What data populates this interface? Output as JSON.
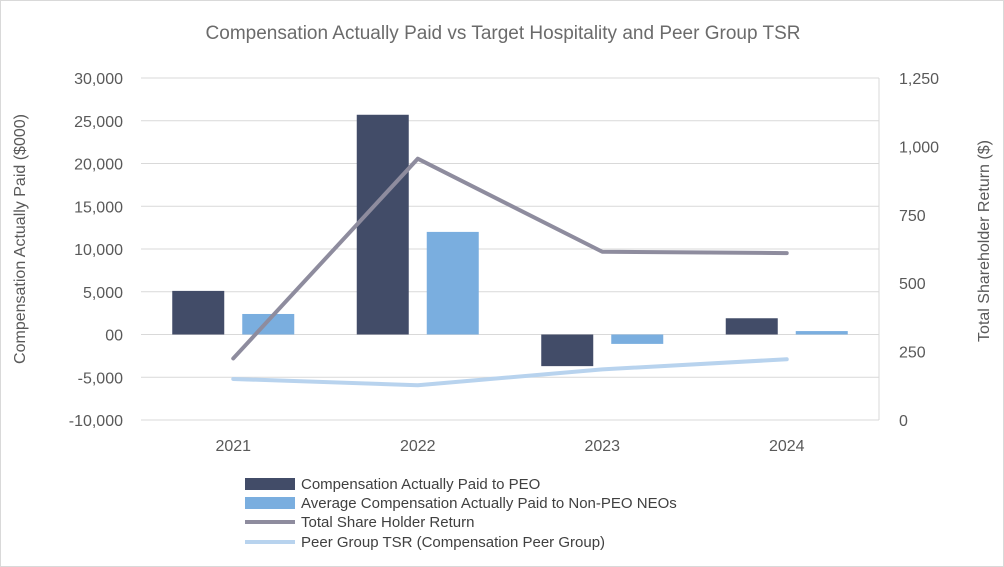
{
  "chart_data": {
    "type": "bar",
    "title": "Compensation Actually Paid vs Target Hospitality and Peer Group TSR",
    "categories": [
      "2021",
      "2022",
      "2023",
      "2024"
    ],
    "ylabel": "Compensation Actually Paid ($000)",
    "y2label": "Total Shareholder Return ($)",
    "ylim": [
      -10000,
      30000
    ],
    "y2lim": [
      0,
      1250
    ],
    "yticks": [
      "30,000",
      "25,000",
      "20,000",
      "15,000",
      "10,000",
      "5,000",
      "00",
      "-5,000",
      "-10,000"
    ],
    "y2ticks": [
      "1,250",
      "1,000",
      "750",
      "500",
      "250",
      "0"
    ],
    "y_tick_values": [
      30000,
      25000,
      20000,
      15000,
      10000,
      5000,
      0,
      -5000,
      -10000
    ],
    "y2_tick_values": [
      1250,
      1000,
      750,
      500,
      250,
      0
    ],
    "grid": true,
    "legend_position": "bottom",
    "series": [
      {
        "name": "Compensation Actually Paid to PEO",
        "kind": "bar",
        "color": "#424c68",
        "values": [
          5100,
          25700,
          -3700,
          1900
        ]
      },
      {
        "name": "Average Compensation Actually Paid to Non-PEO NEOs",
        "kind": "bar",
        "color": "#7aaedf",
        "values": [
          2400,
          12000,
          -1100,
          400
        ]
      },
      {
        "name": "Total Share Holder Return",
        "kind": "line",
        "axis": "right",
        "color": "#8e8c9e",
        "values": [
          225,
          955,
          615,
          610
        ]
      },
      {
        "name": "Peer Group TSR (Compensation Peer Group)",
        "kind": "line",
        "axis": "right",
        "color": "#b8d3ee",
        "values": [
          150,
          127,
          185,
          222
        ]
      }
    ]
  }
}
